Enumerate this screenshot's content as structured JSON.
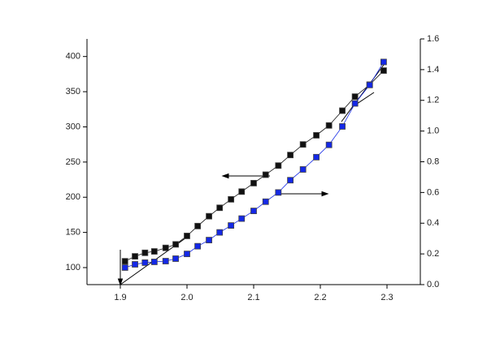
{
  "chart_data": {
    "type": "line",
    "x": [
      1.907,
      1.922,
      1.937,
      1.951,
      1.968,
      1.983,
      2.0,
      2.016,
      2.033,
      2.049,
      2.066,
      2.082,
      2.1,
      2.118,
      2.137,
      2.155,
      2.174,
      2.194,
      2.213,
      2.233,
      2.252,
      2.274,
      2.295
    ],
    "series": [
      {
        "color": "#111111",
        "axis": "y",
        "values": [
          109,
          116,
          121,
          123,
          128,
          133,
          145,
          159,
          173,
          185,
          197,
          208,
          220,
          232,
          245,
          260,
          275,
          288,
          302,
          323,
          343,
          360,
          380
        ]
      },
      {
        "color": "#1428e6",
        "axis": "y2",
        "values": [
          0.111,
          0.132,
          0.143,
          0.148,
          0.153,
          0.169,
          0.2,
          0.25,
          0.29,
          0.34,
          0.385,
          0.43,
          0.48,
          0.54,
          0.6,
          0.68,
          0.75,
          0.83,
          0.91,
          1.03,
          1.18,
          1.3,
          1.45
        ]
      }
    ],
    "xlim": [
      1.85,
      2.35
    ],
    "xticks": [
      1.9,
      {
        "value": 2.0,
        "label": "2.0"
      },
      2.1,
      2.2,
      2.3
    ],
    "ylim": [
      75.8,
      425
    ],
    "yticks": [
      100,
      150,
      200,
      250,
      300,
      350,
      400
    ],
    "y2lim": [
      0,
      1.6
    ],
    "y2ticks": [
      {
        "value": 0,
        "label": "0.0"
      },
      0.2,
      0.4,
      0.6,
      0.8,
      {
        "value": 1.0,
        "label": "1.0"
      },
      1.2,
      1.4,
      1.6
    ]
  }
}
